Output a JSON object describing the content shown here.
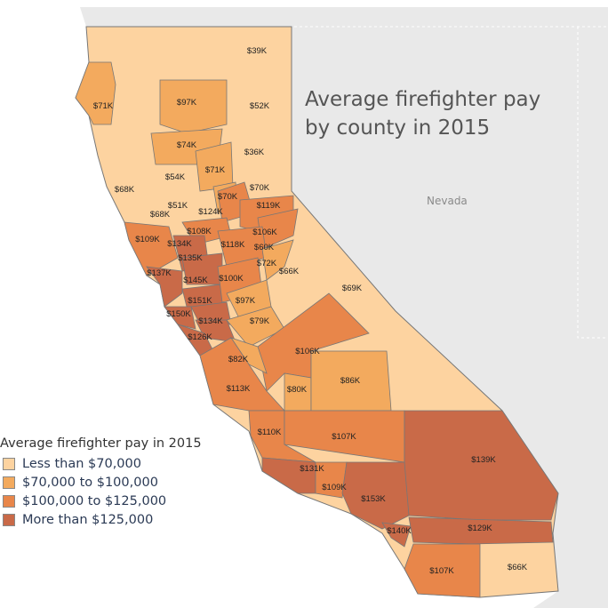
{
  "title": "Average firefighter pay by county in 2015",
  "neighbor_label": "Nevada",
  "legend": {
    "title": "Average firefighter pay in 2015",
    "items": [
      {
        "label": "Less than $70,000",
        "color": "#FDD3A0"
      },
      {
        "label": "$70,000 to $100,000",
        "color": "#F3AA5E"
      },
      {
        "label": "$100,000 to $125,000",
        "color": "#E8864A"
      },
      {
        "label": "More than $125,000",
        "color": "#C96A48"
      }
    ]
  },
  "counties": [
    {
      "label": "$39K",
      "tier": 0
    },
    {
      "label": "$71K",
      "tier": 1
    },
    {
      "label": "$97K",
      "tier": 1
    },
    {
      "label": "$52K",
      "tier": 0
    },
    {
      "label": "$74K",
      "tier": 1
    },
    {
      "label": "$36K",
      "tier": 0
    },
    {
      "label": "$71K",
      "tier": 1
    },
    {
      "label": "$68K",
      "tier": 0
    },
    {
      "label": "$54K",
      "tier": 0
    },
    {
      "label": "$70K",
      "tier": 0
    },
    {
      "label": "$70K",
      "tier": 1
    },
    {
      "label": "$51K",
      "tier": 0
    },
    {
      "label": "$68K",
      "tier": 0
    },
    {
      "label": "$124K",
      "tier": 2
    },
    {
      "label": "$119K",
      "tier": 2
    },
    {
      "label": "$108K",
      "tier": 2
    },
    {
      "label": "$109K",
      "tier": 2
    },
    {
      "label": "$134K",
      "tier": 3
    },
    {
      "label": "$106K",
      "tier": 2
    },
    {
      "label": "$118K",
      "tier": 2
    },
    {
      "label": "$60K",
      "tier": 0
    },
    {
      "label": "$135K",
      "tier": 3
    },
    {
      "label": "$72K",
      "tier": 1
    },
    {
      "label": "$66K",
      "tier": 0
    },
    {
      "label": "$137K",
      "tier": 3
    },
    {
      "label": "$145K",
      "tier": 3
    },
    {
      "label": "$100K",
      "tier": 2
    },
    {
      "label": "$69K",
      "tier": 0
    },
    {
      "label": "$151K",
      "tier": 3
    },
    {
      "label": "$97K",
      "tier": 1
    },
    {
      "label": "$150K",
      "tier": 3
    },
    {
      "label": "$134K",
      "tier": 3
    },
    {
      "label": "$79K",
      "tier": 1
    },
    {
      "label": "$126K",
      "tier": 3
    },
    {
      "label": "$106K",
      "tier": 2
    },
    {
      "label": "$82K",
      "tier": 1
    },
    {
      "label": "$113K",
      "tier": 2
    },
    {
      "label": "$80K",
      "tier": 1
    },
    {
      "label": "$86K",
      "tier": 1
    },
    {
      "label": "$110K",
      "tier": 2
    },
    {
      "label": "$107K",
      "tier": 2
    },
    {
      "label": "$139K",
      "tier": 3
    },
    {
      "label": "$131K",
      "tier": 3
    },
    {
      "label": "$109K",
      "tier": 2
    },
    {
      "label": "$153K",
      "tier": 3
    },
    {
      "label": "$140K",
      "tier": 3
    },
    {
      "label": "$129K",
      "tier": 3
    },
    {
      "label": "$107K",
      "tier": 2
    },
    {
      "label": "$66K",
      "tier": 0
    }
  ]
}
